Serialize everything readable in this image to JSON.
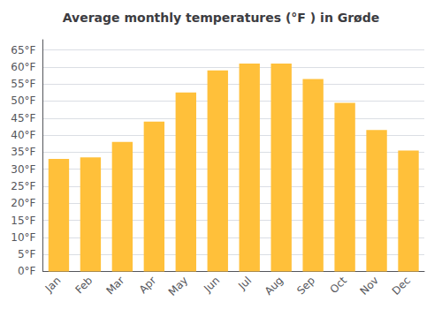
{
  "chart_data": {
    "type": "bar",
    "title": "Average monthly temperatures (°F ) in Grøde",
    "categories": [
      "Jan",
      "Feb",
      "Mar",
      "Apr",
      "May",
      "Jun",
      "Jul",
      "Aug",
      "Sep",
      "Oct",
      "Nov",
      "Dec"
    ],
    "values": [
      33,
      33.5,
      38,
      44,
      52.5,
      59,
      61,
      61,
      56.5,
      49.5,
      41.5,
      35.5
    ],
    "color": "#FFC03A",
    "ylim": [
      0,
      68
    ],
    "yticks": [
      {
        "value": 0,
        "label": "0°F"
      },
      {
        "value": 5,
        "label": "5°F"
      },
      {
        "value": 10,
        "label": "10°F"
      },
      {
        "value": 15,
        "label": "15°F"
      },
      {
        "value": 20,
        "label": "20°F"
      },
      {
        "value": 25,
        "label": "25°F"
      },
      {
        "value": 30,
        "label": "30°F"
      },
      {
        "value": 35,
        "label": "35°F"
      },
      {
        "value": 40,
        "label": "40°F"
      },
      {
        "value": 45,
        "label": "45°F"
      },
      {
        "value": 50,
        "label": "50°F"
      },
      {
        "value": 55,
        "label": "55°F"
      },
      {
        "value": 60,
        "label": "60°F"
      },
      {
        "value": 65,
        "label": "65°F"
      }
    ],
    "grid": true
  }
}
